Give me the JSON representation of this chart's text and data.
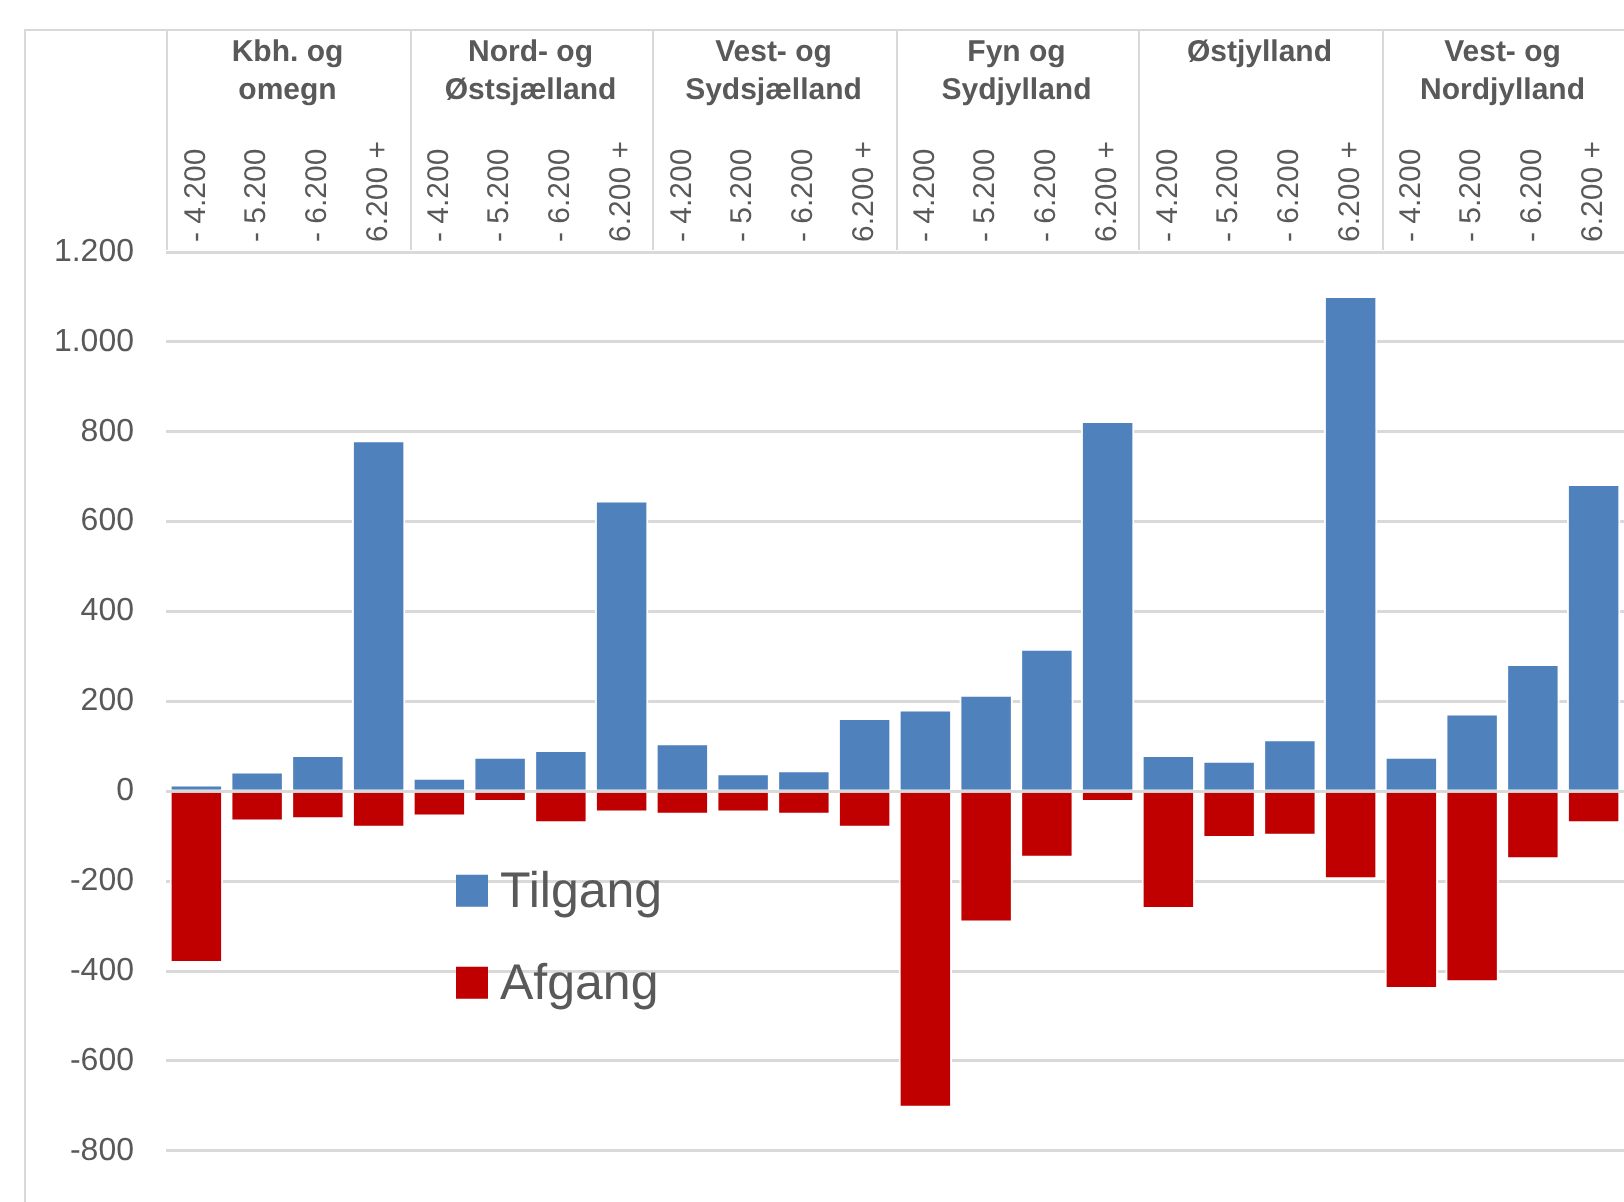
{
  "chart_data": {
    "type": "bar",
    "stacked": true,
    "categories": [
      "- 4.200",
      "- 5.200",
      "- 6.200",
      "6.200 +",
      "- 4.200",
      "- 5.200",
      "- 6.200",
      "6.200 +",
      "- 4.200",
      "- 5.200",
      "- 6.200",
      "6.200 +",
      "- 4.200",
      "- 5.200",
      "- 6.200",
      "6.200 +",
      "- 4.200",
      "- 5.200",
      "- 6.200",
      "6.200 +",
      "- 4.200",
      "- 5.200",
      "- 6.200",
      "6.200 +"
    ],
    "annotations": [
      "Kbh. og\nomegn",
      "Nord- og\nØstsjælland",
      "Vest- og\nSydsjælland",
      "Fyn og\nSydjylland",
      "Østjylland",
      "Vest- og\nNordjylland"
    ],
    "series": [
      {
        "name": "Tilgang",
        "color": "#4f81bd",
        "values": [
          15,
          44,
          81,
          781,
          30,
          77,
          92,
          647,
          107,
          40,
          47,
          163,
          182,
          215,
          317,
          824,
          81,
          68,
          116,
          1102,
          77,
          173,
          283,
          684
        ]
      },
      {
        "name": "Afgang",
        "color": "#c00000",
        "values": [
          -382,
          -67,
          -62,
          -81,
          -56,
          -24,
          -71,
          -47,
          -52,
          -47,
          -52,
          -81,
          -704,
          -292,
          -148,
          -24,
          -262,
          -104,
          -99,
          -196,
          -440,
          -425,
          -151,
          -71
        ]
      }
    ],
    "ylim": [
      -800,
      1200
    ],
    "yticks": [
      {
        "value": -800,
        "label": "-800"
      },
      {
        "value": -600,
        "label": "-600"
      },
      {
        "value": -400,
        "label": "-400"
      },
      {
        "value": -200,
        "label": "-200"
      },
      {
        "value": 0,
        "label": "0"
      },
      {
        "value": 200,
        "label": "200"
      },
      {
        "value": 400,
        "label": "400"
      },
      {
        "value": 600,
        "label": "600"
      },
      {
        "value": 800,
        "label": "800"
      },
      {
        "value": 1000,
        "label": "1.000"
      },
      {
        "value": 1200,
        "label": "1.200"
      }
    ],
    "grid": "y",
    "legend": "bottom left"
  }
}
